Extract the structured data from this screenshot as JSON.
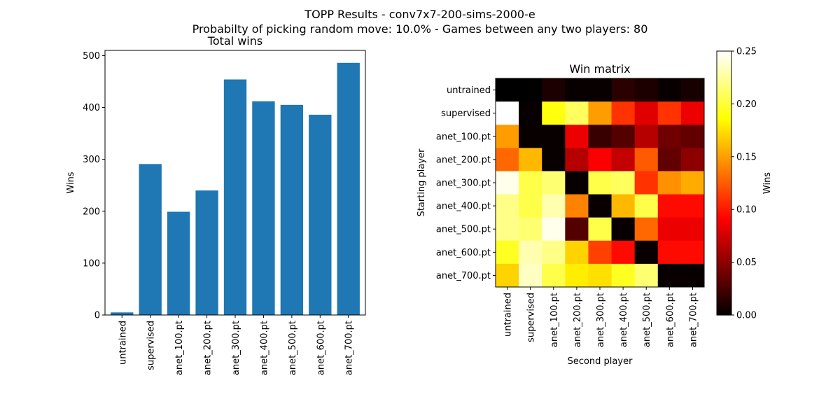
{
  "figure": {
    "title_line1": "TOPP Results - conv7x7-200-sims-2000-e",
    "title_line2": "Probabilty of picking random move: 10.0% - Games between any two players: 80"
  },
  "chart_data": [
    {
      "type": "bar",
      "title": "Total wins",
      "xlabel": "",
      "ylabel": "Wins",
      "ylim": [
        0,
        510
      ],
      "yticks": [
        0,
        100,
        200,
        300,
        400,
        500
      ],
      "color": "#1f77b4",
      "categories": [
        "untrained",
        "supervised",
        "anet_100.pt",
        "anet_200.pt",
        "anet_300.pt",
        "anet_400.pt",
        "anet_500.pt",
        "anet_600.pt",
        "anet_700.pt"
      ],
      "values": [
        5,
        291,
        199,
        240,
        454,
        412,
        405,
        386,
        486
      ],
      "grid": false
    },
    {
      "type": "heatmap",
      "title": "Win matrix",
      "xlabel": "Second player",
      "ylabel": "Starting player",
      "colormap": "hot",
      "colorbar_label": "Wins",
      "colorbar_range": [
        0,
        0.25
      ],
      "colorbar_ticks": [
        "0.00",
        "0.05",
        "0.10",
        "0.15",
        "0.20",
        "0.25"
      ],
      "rows": [
        "untrained",
        "supervised",
        "anet_100.pt",
        "anet_200.pt",
        "anet_300.pt",
        "anet_400.pt",
        "anet_500.pt",
        "anet_600.pt",
        "anet_700.pt"
      ],
      "cols": [
        "untrained",
        "supervised",
        "anet_100.pt",
        "anet_200.pt",
        "anet_300.pt",
        "anet_400.pt",
        "anet_500.pt",
        "anet_600.pt",
        "anet_700.pt"
      ],
      "values": [
        [
          0.0,
          0.0,
          0.01,
          0.003,
          0.003,
          0.015,
          0.01,
          0.003,
          0.008
        ],
        [
          0.25,
          0.003,
          0.19,
          0.21,
          0.15,
          0.11,
          0.08,
          0.11,
          0.085
        ],
        [
          0.15,
          0.003,
          0.003,
          0.085,
          0.02,
          0.03,
          0.065,
          0.04,
          0.035
        ],
        [
          0.13,
          0.16,
          0.003,
          0.065,
          0.09,
          0.07,
          0.125,
          0.035,
          0.05
        ],
        [
          0.245,
          0.205,
          0.215,
          0.003,
          0.205,
          0.21,
          0.11,
          0.145,
          0.155
        ],
        [
          0.22,
          0.205,
          0.23,
          0.14,
          0.003,
          0.16,
          0.205,
          0.095,
          0.095
        ],
        [
          0.22,
          0.215,
          0.245,
          0.03,
          0.205,
          0.003,
          0.13,
          0.085,
          0.085
        ],
        [
          0.195,
          0.23,
          0.22,
          0.17,
          0.115,
          0.095,
          0.003,
          0.095,
          0.095
        ],
        [
          0.17,
          0.235,
          0.205,
          0.18,
          0.175,
          0.195,
          0.215,
          0.003,
          0.003
        ]
      ]
    }
  ]
}
